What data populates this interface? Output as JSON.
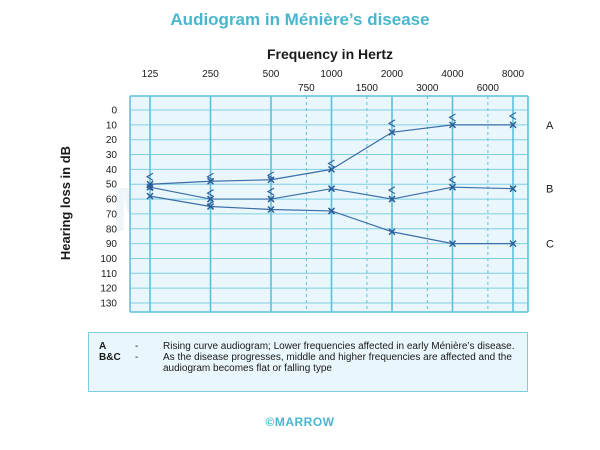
{
  "page": {
    "title": "Audiogram in Ménière’s disease",
    "footer": "©MARROW",
    "watermark": "MARROW"
  },
  "chart_data": {
    "type": "line",
    "title": "Audiogram in Ménière’s disease",
    "xlabel": "Frequency in Hertz",
    "ylabel": "Hearing loss in dB",
    "x_major": [
      125,
      250,
      500,
      1000,
      2000,
      4000,
      8000
    ],
    "x_minor": [
      750,
      1500,
      3000,
      6000
    ],
    "x_scale": "log",
    "y_ticks": [
      0,
      10,
      20,
      30,
      40,
      50,
      60,
      70,
      80,
      90,
      100,
      110,
      120,
      130
    ],
    "ylim": [
      0,
      130
    ],
    "y_inverted": true,
    "grid": true,
    "series": [
      {
        "name": "A",
        "x": [
          125,
          250,
          500,
          1000,
          2000,
          4000,
          8000
        ],
        "y": [
          50,
          48,
          47,
          40,
          15,
          10,
          10
        ]
      },
      {
        "name": "B",
        "x": [
          125,
          250,
          500,
          1000,
          2000,
          4000,
          8000
        ],
        "y": [
          52,
          60,
          60,
          53,
          60,
          52,
          53
        ]
      },
      {
        "name": "C",
        "x": [
          125,
          250,
          500,
          1000,
          2000,
          4000,
          8000
        ],
        "y": [
          58,
          65,
          67,
          68,
          82,
          90,
          90
        ]
      }
    ],
    "bone_conduction": [
      {
        "x": 125,
        "y": [
          45,
          52
        ]
      },
      {
        "x": 250,
        "y": [
          45,
          56,
          64
        ]
      },
      {
        "x": 500,
        "y": [
          44,
          55
        ]
      },
      {
        "x": 1000,
        "y": [
          36
        ]
      },
      {
        "x": 2000,
        "y": [
          9,
          54
        ]
      },
      {
        "x": 4000,
        "y": [
          5,
          47
        ]
      },
      {
        "x": 8000,
        "y": [
          4
        ]
      }
    ],
    "colors": {
      "accent": "#49b6cf",
      "grid": "#5cc2dc",
      "line": "#3c6ea8",
      "plot_bg": "#e9f6fb"
    }
  },
  "legend": {
    "rows": [
      {
        "key": "A",
        "sep": "-",
        "text": "Rising curve audiogram; Lower frequencies affected in early Ménière’s disease."
      },
      {
        "key": "B&C",
        "sep": "-",
        "text": "As the disease progresses, middle and higher frequencies are affected and the audiogram becomes flat or falling type"
      }
    ]
  }
}
